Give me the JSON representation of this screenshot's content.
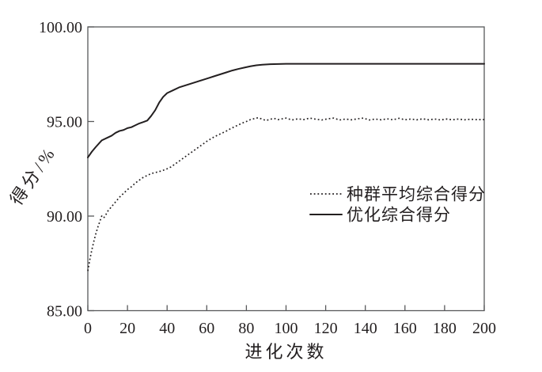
{
  "figure": {
    "background": "#ffffff",
    "line_color": "#231f20",
    "axis_color": "#58595b"
  },
  "chart_data": {
    "type": "line",
    "title": "",
    "xlabel": "进化次数",
    "ylabel": "得分/%",
    "xlim": [
      0,
      200
    ],
    "ylim": [
      85,
      100
    ],
    "grid": false,
    "legend_position": "center-right",
    "x_ticks": [
      0,
      20,
      40,
      60,
      80,
      100,
      120,
      140,
      160,
      180,
      200
    ],
    "x_tick_labels": [
      "0",
      "20",
      "40",
      "60",
      "80",
      "100",
      "120",
      "140",
      "160",
      "180",
      "200"
    ],
    "y_ticks": [
      100,
      95,
      90,
      85
    ],
    "y_tick_labels": [
      "100.00",
      "95.00",
      "90.00",
      "85.00"
    ],
    "series": [
      {
        "name": "种群平均综合得分",
        "style": "dotted",
        "points": [
          [
            0,
            87.1
          ],
          [
            1,
            87.7
          ],
          [
            2,
            88.2
          ],
          [
            3,
            88.65
          ],
          [
            4,
            89.05
          ],
          [
            5,
            89.4
          ],
          [
            6,
            89.7
          ],
          [
            7,
            90.0
          ],
          [
            8,
            89.9
          ],
          [
            9,
            90.05
          ],
          [
            10,
            90.25
          ],
          [
            12,
            90.5
          ],
          [
            14,
            90.75
          ],
          [
            16,
            91.0
          ],
          [
            18,
            91.2
          ],
          [
            20,
            91.4
          ],
          [
            22,
            91.55
          ],
          [
            24,
            91.75
          ],
          [
            26,
            91.9
          ],
          [
            28,
            92.05
          ],
          [
            30,
            92.15
          ],
          [
            32,
            92.25
          ],
          [
            34,
            92.3
          ],
          [
            36,
            92.35
          ],
          [
            38,
            92.42
          ],
          [
            40,
            92.5
          ],
          [
            42,
            92.6
          ],
          [
            44,
            92.75
          ],
          [
            46,
            92.9
          ],
          [
            48,
            93.05
          ],
          [
            50,
            93.2
          ],
          [
            52,
            93.35
          ],
          [
            54,
            93.5
          ],
          [
            56,
            93.65
          ],
          [
            58,
            93.8
          ],
          [
            60,
            93.95
          ],
          [
            62,
            94.08
          ],
          [
            64,
            94.2
          ],
          [
            66,
            94.3
          ],
          [
            68,
            94.4
          ],
          [
            70,
            94.5
          ],
          [
            72,
            94.62
          ],
          [
            74,
            94.72
          ],
          [
            76,
            94.82
          ],
          [
            78,
            94.92
          ],
          [
            80,
            95.0
          ],
          [
            82,
            95.1
          ],
          [
            84,
            95.15
          ],
          [
            86,
            95.2
          ],
          [
            88,
            95.12
          ],
          [
            90,
            95.05
          ],
          [
            92,
            95.12
          ],
          [
            94,
            95.16
          ],
          [
            96,
            95.1
          ],
          [
            98,
            95.14
          ],
          [
            100,
            95.18
          ],
          [
            103,
            95.08
          ],
          [
            106,
            95.14
          ],
          [
            109,
            95.1
          ],
          [
            112,
            95.18
          ],
          [
            115,
            95.12
          ],
          [
            118,
            95.08
          ],
          [
            121,
            95.14
          ],
          [
            124,
            95.18
          ],
          [
            127,
            95.08
          ],
          [
            130,
            95.13
          ],
          [
            133,
            95.09
          ],
          [
            136,
            95.14
          ],
          [
            139,
            95.18
          ],
          [
            142,
            95.08
          ],
          [
            145,
            95.13
          ],
          [
            148,
            95.09
          ],
          [
            151,
            95.14
          ],
          [
            154,
            95.09
          ],
          [
            157,
            95.17
          ],
          [
            160,
            95.09
          ],
          [
            163,
            95.13
          ],
          [
            166,
            95.09
          ],
          [
            169,
            95.14
          ],
          [
            172,
            95.09
          ],
          [
            175,
            95.13
          ],
          [
            178,
            95.08
          ],
          [
            181,
            95.13
          ],
          [
            184,
            95.09
          ],
          [
            187,
            95.13
          ],
          [
            190,
            95.09
          ],
          [
            193,
            95.12
          ],
          [
            196,
            95.1
          ],
          [
            200,
            95.1
          ]
        ]
      },
      {
        "name": "优化综合得分",
        "style": "solid",
        "points": [
          [
            0,
            93.1
          ],
          [
            2,
            93.4
          ],
          [
            4,
            93.65
          ],
          [
            7,
            94.0
          ],
          [
            10,
            94.15
          ],
          [
            12,
            94.25
          ],
          [
            14,
            94.4
          ],
          [
            16,
            94.5
          ],
          [
            18,
            94.55
          ],
          [
            20,
            94.65
          ],
          [
            22,
            94.7
          ],
          [
            24,
            94.8
          ],
          [
            26,
            94.9
          ],
          [
            28,
            94.97
          ],
          [
            30,
            95.05
          ],
          [
            32,
            95.3
          ],
          [
            34,
            95.6
          ],
          [
            36,
            96.0
          ],
          [
            38,
            96.3
          ],
          [
            40,
            96.5
          ],
          [
            43,
            96.65
          ],
          [
            46,
            96.8
          ],
          [
            49,
            96.9
          ],
          [
            52,
            97.0
          ],
          [
            55,
            97.1
          ],
          [
            58,
            97.2
          ],
          [
            61,
            97.3
          ],
          [
            64,
            97.4
          ],
          [
            67,
            97.5
          ],
          [
            70,
            97.6
          ],
          [
            73,
            97.7
          ],
          [
            76,
            97.78
          ],
          [
            79,
            97.85
          ],
          [
            82,
            97.92
          ],
          [
            85,
            97.97
          ],
          [
            88,
            98.0
          ],
          [
            92,
            98.03
          ],
          [
            96,
            98.04
          ],
          [
            100,
            98.05
          ],
          [
            120,
            98.05
          ],
          [
            140,
            98.05
          ],
          [
            160,
            98.05
          ],
          [
            180,
            98.05
          ],
          [
            200,
            98.05
          ]
        ]
      }
    ]
  }
}
